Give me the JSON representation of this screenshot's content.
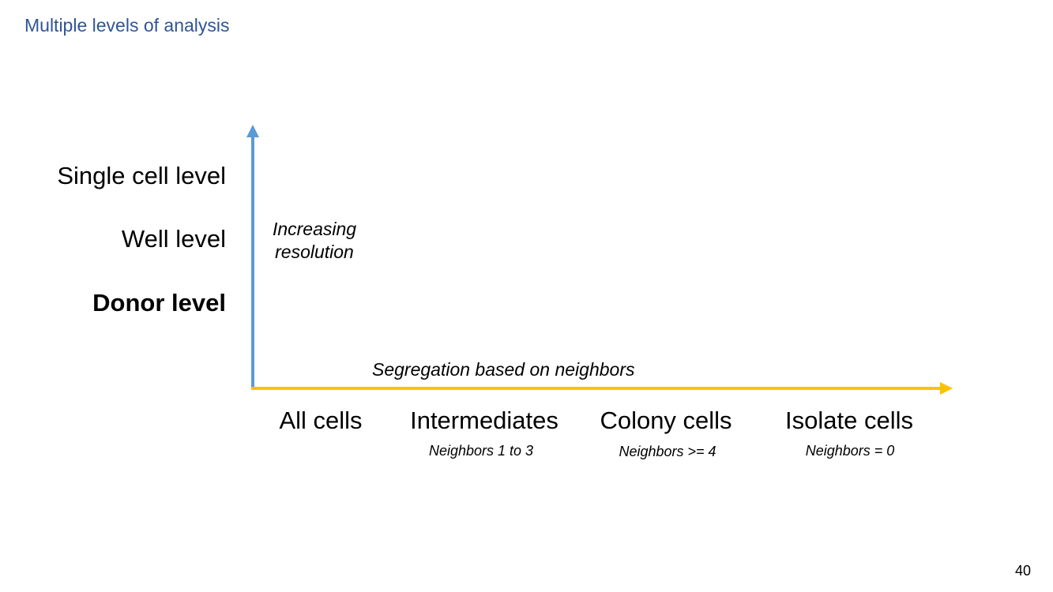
{
  "slide": {
    "title": "Multiple levels of analysis",
    "page_number": "40"
  },
  "y_axis": {
    "caption": "Increasing resolution",
    "levels": [
      "Single cell level",
      "Well level",
      "Donor level"
    ],
    "color": "#5b9bd5"
  },
  "x_axis": {
    "caption": "Segregation based on neighbors",
    "color": "#ffc000",
    "categories": [
      {
        "label": "All cells",
        "sublabel": ""
      },
      {
        "label": "Intermediates",
        "sublabel": "Neighbors 1 to 3"
      },
      {
        "label": "Colony cells",
        "sublabel": "Neighbors >= 4"
      },
      {
        "label": "Isolate cells",
        "sublabel": "Neighbors = 0"
      }
    ]
  }
}
